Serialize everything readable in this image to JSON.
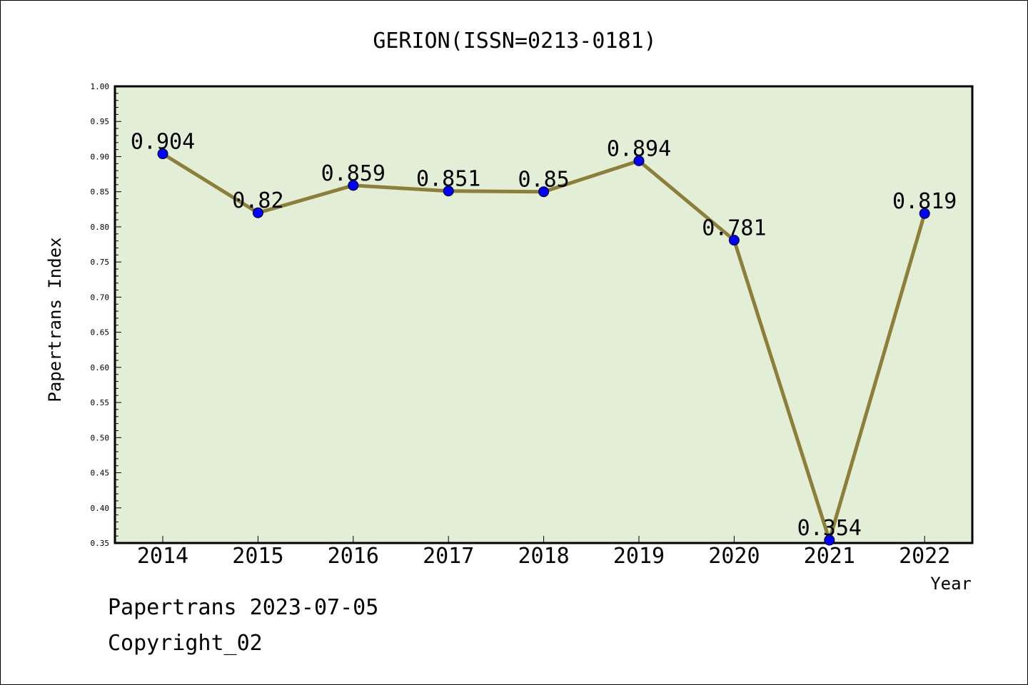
{
  "chart_data": {
    "type": "line",
    "title": "GERION(ISSN=0213-0181)",
    "xlabel": "Year",
    "ylabel": "Papertrans Index",
    "categories": [
      "2014",
      "2015",
      "2016",
      "2017",
      "2018",
      "2019",
      "2020",
      "2021",
      "2022"
    ],
    "values": [
      0.904,
      0.82,
      0.859,
      0.851,
      0.85,
      0.894,
      0.781,
      0.354,
      0.819
    ],
    "value_labels": [
      "0.904",
      "0.82",
      "0.859",
      "0.851",
      "0.85",
      "0.894",
      "0.781",
      "0.354",
      "0.819"
    ],
    "ylim": [
      0.35,
      1.0
    ],
    "yticks": [
      "0.35",
      "0.40",
      "0.45",
      "0.50",
      "0.55",
      "0.60",
      "0.65",
      "0.70",
      "0.75",
      "0.80",
      "0.85",
      "0.90",
      "0.95",
      "1.00"
    ],
    "grid": false,
    "colors": {
      "plot_background": "#e2efd6",
      "line": "#8b7f3a",
      "marker": "#0000ff"
    }
  },
  "footer": {
    "line1": "Papertrans 2023-07-05",
    "line2": "Copyright_02"
  }
}
